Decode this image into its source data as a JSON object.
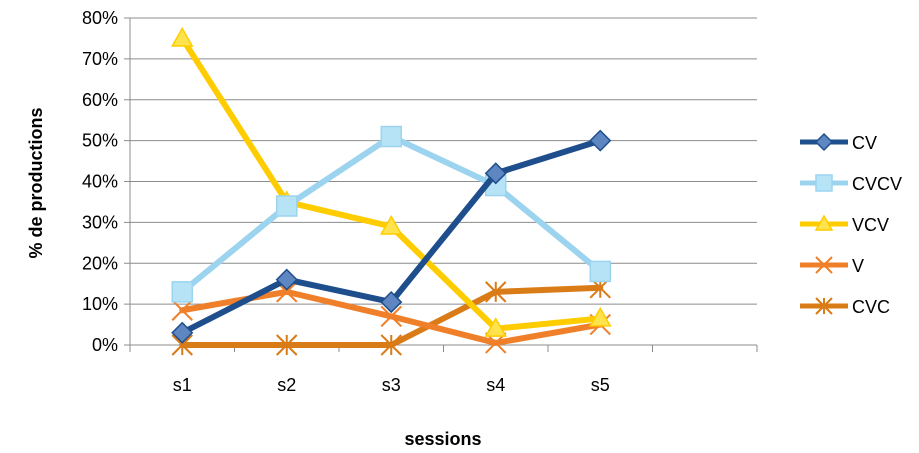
{
  "chart_data": {
    "type": "line",
    "categories": [
      "s1",
      "s2",
      "s3",
      "s4",
      "s5"
    ],
    "series": [
      {
        "name": "CV",
        "values": [
          3,
          16,
          10.5,
          42,
          50
        ],
        "color": "#1F4E8C",
        "marker": "diamond"
      },
      {
        "name": "CVCV",
        "values": [
          13,
          34,
          51,
          39,
          18
        ],
        "color": "#9CD4EF",
        "marker": "square"
      },
      {
        "name": "VCV",
        "values": [
          75,
          35,
          29,
          4,
          6.5
        ],
        "color": "#FFCC00",
        "marker": "triangle"
      },
      {
        "name": "V",
        "values": [
          8.5,
          13,
          7,
          0.5,
          5
        ],
        "color": "#F07F2A",
        "marker": "x"
      },
      {
        "name": "CVC",
        "values": [
          0,
          0,
          0,
          13,
          14
        ],
        "color": "#D97B16",
        "marker": "star"
      }
    ],
    "yticks": [
      "0%",
      "10%",
      "20%",
      "30%",
      "40%",
      "50%",
      "60%",
      "70%",
      "80%"
    ],
    "ylim": [
      0,
      80
    ],
    "xlabel": "sessions",
    "ylabel": "% de productions",
    "grid": true,
    "legend_position": "right"
  }
}
